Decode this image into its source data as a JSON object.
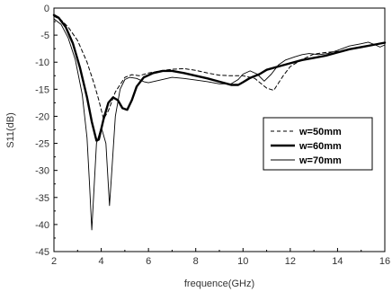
{
  "chart_data": {
    "type": "line",
    "xlabel": "frequence(GHz)",
    "ylabel": "S11(dB)",
    "xlim": [
      2,
      16
    ],
    "ylim": [
      -45,
      0
    ],
    "xticks": [
      2,
      4,
      6,
      8,
      10,
      12,
      14,
      16
    ],
    "yticks": [
      0,
      -5,
      -10,
      -15,
      -20,
      -25,
      -30,
      -35,
      -40,
      -45
    ],
    "legend_position": "right",
    "series": [
      {
        "name": "w=50mm",
        "style": "dashed",
        "color": "#000000",
        "x": [
          2.0,
          2.3,
          2.6,
          3.0,
          3.4,
          3.7,
          3.9,
          4.1,
          4.3,
          4.6,
          5.0,
          5.3,
          5.6,
          6.0,
          6.5,
          7.0,
          7.5,
          8.0,
          8.5,
          9.0,
          9.5,
          10.0,
          10.5,
          11.0,
          11.3,
          11.7,
          12.0,
          12.5,
          13.0,
          13.5,
          14.0,
          14.5,
          15.0,
          15.5,
          16.0
        ],
        "y": [
          -1.5,
          -2.2,
          -3.5,
          -6.0,
          -10.0,
          -14.0,
          -17.0,
          -20.5,
          -19.0,
          -15.5,
          -12.8,
          -12.3,
          -12.5,
          -12.0,
          -11.6,
          -11.3,
          -11.2,
          -11.5,
          -12.0,
          -12.4,
          -12.5,
          -12.5,
          -13.0,
          -14.8,
          -15.2,
          -12.5,
          -10.8,
          -9.5,
          -8.5,
          -8.2,
          -8.0,
          -7.6,
          -7.3,
          -6.8,
          -6.5
        ]
      },
      {
        "name": "w=60mm",
        "style": "solid-thick",
        "color": "#000000",
        "x": [
          2.0,
          2.2,
          2.5,
          2.8,
          3.1,
          3.4,
          3.6,
          3.8,
          3.9,
          4.1,
          4.3,
          4.5,
          4.7,
          4.9,
          5.1,
          5.3,
          5.5,
          5.8,
          6.2,
          6.6,
          7.0,
          7.5,
          8.0,
          8.5,
          9.0,
          9.5,
          9.8,
          10.0,
          10.3,
          10.7,
          11.0,
          11.5,
          12.0,
          12.5,
          13.0,
          13.5,
          14.0,
          14.5,
          15.0,
          15.5,
          16.0
        ],
        "y": [
          -1.3,
          -1.8,
          -3.5,
          -6.5,
          -11.0,
          -16.5,
          -21.0,
          -24.5,
          -24.3,
          -20.5,
          -17.5,
          -16.5,
          -17.0,
          -18.5,
          -18.8,
          -17.0,
          -14.5,
          -12.8,
          -12.0,
          -11.6,
          -11.6,
          -12.0,
          -12.5,
          -13.0,
          -13.6,
          -14.2,
          -14.2,
          -13.7,
          -12.9,
          -12.2,
          -11.4,
          -10.8,
          -10.2,
          -9.6,
          -9.2,
          -8.8,
          -8.2,
          -7.6,
          -7.2,
          -6.8,
          -6.4
        ]
      },
      {
        "name": "w=70mm",
        "style": "solid-thin",
        "color": "#000000",
        "x": [
          2.0,
          2.3,
          2.6,
          2.9,
          3.2,
          3.4,
          3.5,
          3.6,
          3.7,
          3.8,
          4.0,
          4.2,
          4.35,
          4.45,
          4.6,
          4.8,
          5.0,
          5.2,
          5.5,
          5.8,
          6.0,
          6.5,
          7.0,
          7.5,
          8.0,
          8.5,
          9.0,
          9.5,
          9.8,
          10.0,
          10.3,
          10.6,
          10.9,
          11.2,
          11.5,
          11.8,
          12.2,
          12.5,
          12.8,
          13.2,
          13.6,
          14.0,
          14.5,
          15.0,
          15.3,
          15.6,
          15.8,
          16.0
        ],
        "y": [
          -2.0,
          -3.0,
          -5.5,
          -9.5,
          -16.0,
          -24.0,
          -32.0,
          -41.0,
          -33.0,
          -25.0,
          -22.0,
          -25.0,
          -36.5,
          -30.0,
          -20.0,
          -15.0,
          -13.2,
          -12.8,
          -13.0,
          -13.6,
          -13.8,
          -13.3,
          -12.8,
          -13.0,
          -13.3,
          -13.6,
          -14.0,
          -14.0,
          -13.2,
          -12.2,
          -11.6,
          -12.2,
          -13.5,
          -12.2,
          -10.5,
          -9.6,
          -9.0,
          -8.6,
          -8.4,
          -8.6,
          -8.4,
          -7.8,
          -7.0,
          -6.6,
          -6.3,
          -6.8,
          -7.2,
          -6.8
        ]
      }
    ]
  }
}
